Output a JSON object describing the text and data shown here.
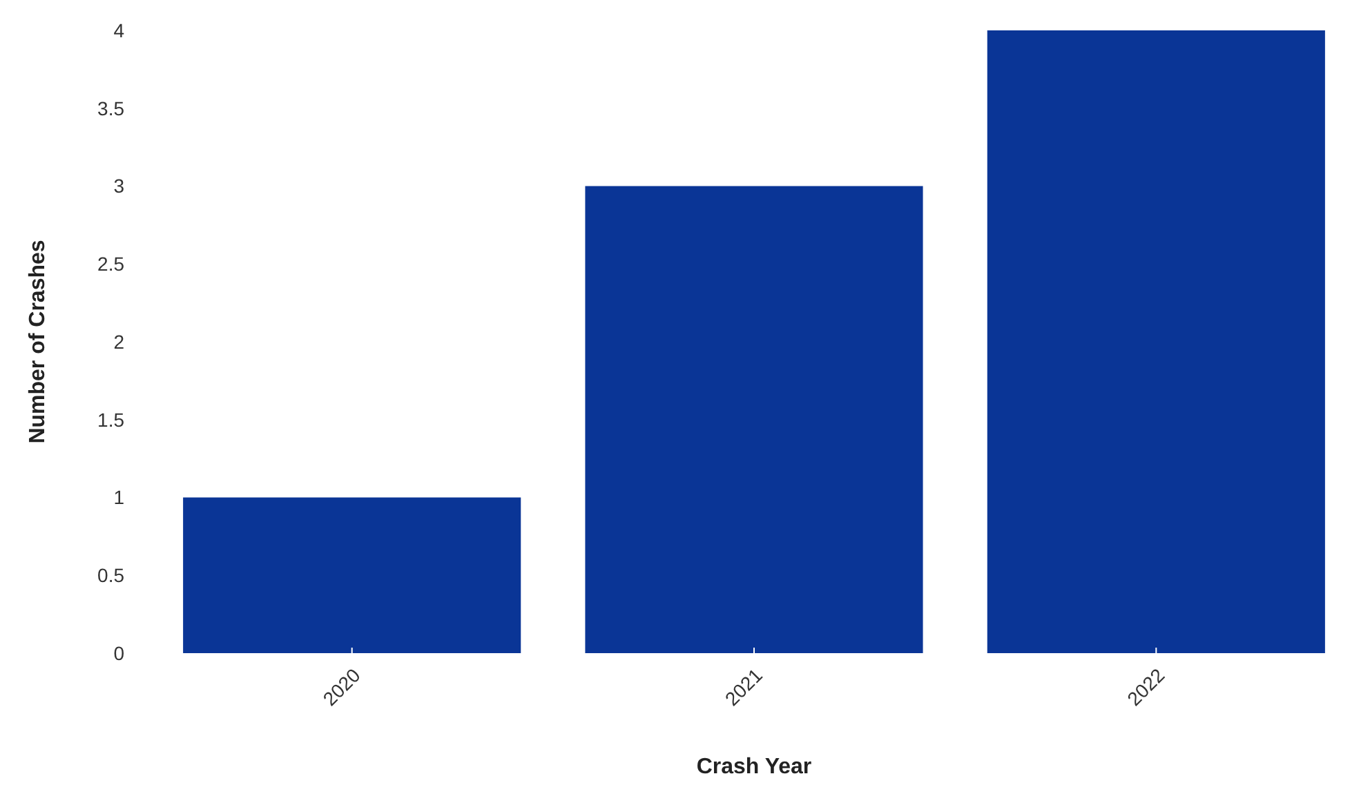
{
  "chart_data": {
    "type": "bar",
    "xlabel": "Crash Year",
    "ylabel": "Number of Crashes",
    "categories": [
      "2020",
      "2021",
      "2022"
    ],
    "values": [
      1,
      3,
      4
    ],
    "color": "#0a3596",
    "ylim": [
      0,
      4
    ],
    "yticks": [
      0,
      0.5,
      1,
      1.5,
      2,
      2.5,
      3,
      3.5,
      4
    ],
    "grid": false
  }
}
